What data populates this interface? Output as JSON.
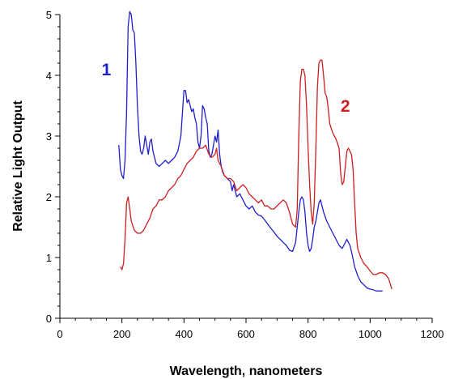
{
  "chart_data": {
    "type": "line",
    "title": "",
    "xlabel": "Wavelength, nanometers",
    "ylabel": "Relative Light Output",
    "xlim": [
      0,
      1200
    ],
    "ylim": [
      0,
      5
    ],
    "x_ticks": [
      "0",
      "200",
      "400",
      "600",
      "800",
      "1000",
      "1200"
    ],
    "y_ticks": [
      "0",
      "1",
      "2",
      "3",
      "4",
      "5"
    ],
    "grid": false,
    "legend": "none",
    "series": [
      {
        "name": "1",
        "color": "#1f1fcc",
        "points": [
          [
            190,
            2.85
          ],
          [
            195,
            2.45
          ],
          [
            200,
            2.35
          ],
          [
            205,
            2.3
          ],
          [
            210,
            2.6
          ],
          [
            215,
            3.4
          ],
          [
            220,
            4.8
          ],
          [
            225,
            5.05
          ],
          [
            230,
            5.0
          ],
          [
            235,
            4.75
          ],
          [
            240,
            4.7
          ],
          [
            245,
            4.2
          ],
          [
            250,
            3.5
          ],
          [
            255,
            3.0
          ],
          [
            260,
            2.75
          ],
          [
            265,
            2.7
          ],
          [
            270,
            2.8
          ],
          [
            275,
            3.0
          ],
          [
            280,
            2.85
          ],
          [
            285,
            2.7
          ],
          [
            290,
            2.9
          ],
          [
            295,
            2.95
          ],
          [
            300,
            2.75
          ],
          [
            310,
            2.55
          ],
          [
            320,
            2.5
          ],
          [
            330,
            2.55
          ],
          [
            340,
            2.6
          ],
          [
            350,
            2.55
          ],
          [
            360,
            2.6
          ],
          [
            370,
            2.65
          ],
          [
            380,
            2.75
          ],
          [
            390,
            3.0
          ],
          [
            400,
            3.75
          ],
          [
            405,
            3.75
          ],
          [
            410,
            3.55
          ],
          [
            415,
            3.6
          ],
          [
            420,
            3.5
          ],
          [
            425,
            3.4
          ],
          [
            430,
            3.45
          ],
          [
            435,
            3.3
          ],
          [
            440,
            3.2
          ],
          [
            445,
            2.9
          ],
          [
            450,
            2.8
          ],
          [
            455,
            3.0
          ],
          [
            460,
            3.5
          ],
          [
            465,
            3.45
          ],
          [
            470,
            3.3
          ],
          [
            475,
            3.2
          ],
          [
            480,
            2.75
          ],
          [
            485,
            2.65
          ],
          [
            490,
            2.7
          ],
          [
            495,
            2.85
          ],
          [
            500,
            3.0
          ],
          [
            505,
            2.9
          ],
          [
            510,
            3.1
          ],
          [
            515,
            2.7
          ],
          [
            520,
            2.5
          ],
          [
            525,
            2.4
          ],
          [
            530,
            2.35
          ],
          [
            540,
            2.3
          ],
          [
            550,
            2.25
          ],
          [
            555,
            2.1
          ],
          [
            560,
            2.2
          ],
          [
            570,
            2.0
          ],
          [
            580,
            2.05
          ],
          [
            590,
            1.95
          ],
          [
            600,
            1.85
          ],
          [
            610,
            1.8
          ],
          [
            620,
            1.85
          ],
          [
            630,
            1.75
          ],
          [
            640,
            1.7
          ],
          [
            650,
            1.68
          ],
          [
            660,
            1.62
          ],
          [
            670,
            1.55
          ],
          [
            680,
            1.48
          ],
          [
            690,
            1.42
          ],
          [
            700,
            1.35
          ],
          [
            710,
            1.3
          ],
          [
            720,
            1.25
          ],
          [
            730,
            1.2
          ],
          [
            740,
            1.12
          ],
          [
            750,
            1.1
          ],
          [
            760,
            1.25
          ],
          [
            770,
            1.75
          ],
          [
            775,
            1.95
          ],
          [
            780,
            2.0
          ],
          [
            785,
            1.95
          ],
          [
            790,
            1.75
          ],
          [
            795,
            1.4
          ],
          [
            800,
            1.2
          ],
          [
            805,
            1.1
          ],
          [
            810,
            1.15
          ],
          [
            815,
            1.3
          ],
          [
            820,
            1.5
          ],
          [
            825,
            1.6
          ],
          [
            830,
            1.75
          ],
          [
            835,
            1.9
          ],
          [
            840,
            1.95
          ],
          [
            845,
            1.85
          ],
          [
            850,
            1.75
          ],
          [
            860,
            1.6
          ],
          [
            870,
            1.5
          ],
          [
            880,
            1.4
          ],
          [
            890,
            1.3
          ],
          [
            900,
            1.2
          ],
          [
            910,
            1.15
          ],
          [
            915,
            1.2
          ],
          [
            920,
            1.25
          ],
          [
            925,
            1.3
          ],
          [
            930,
            1.25
          ],
          [
            935,
            1.2
          ],
          [
            940,
            1.1
          ],
          [
            950,
            0.85
          ],
          [
            960,
            0.7
          ],
          [
            970,
            0.6
          ],
          [
            980,
            0.55
          ],
          [
            990,
            0.5
          ],
          [
            1000,
            0.48
          ],
          [
            1010,
            0.47
          ],
          [
            1020,
            0.45
          ],
          [
            1030,
            0.45
          ],
          [
            1040,
            0.45
          ]
        ]
      },
      {
        "name": "2",
        "color": "#cc1f1f",
        "points": [
          [
            195,
            0.85
          ],
          [
            200,
            0.8
          ],
          [
            205,
            0.9
          ],
          [
            210,
            1.3
          ],
          [
            215,
            1.9
          ],
          [
            220,
            2.0
          ],
          [
            225,
            1.8
          ],
          [
            230,
            1.6
          ],
          [
            240,
            1.45
          ],
          [
            250,
            1.4
          ],
          [
            260,
            1.4
          ],
          [
            270,
            1.45
          ],
          [
            280,
            1.55
          ],
          [
            290,
            1.65
          ],
          [
            300,
            1.8
          ],
          [
            310,
            1.85
          ],
          [
            320,
            1.95
          ],
          [
            330,
            1.95
          ],
          [
            340,
            2.0
          ],
          [
            350,
            2.1
          ],
          [
            360,
            2.15
          ],
          [
            370,
            2.2
          ],
          [
            380,
            2.3
          ],
          [
            390,
            2.35
          ],
          [
            400,
            2.45
          ],
          [
            410,
            2.55
          ],
          [
            420,
            2.6
          ],
          [
            430,
            2.65
          ],
          [
            440,
            2.75
          ],
          [
            450,
            2.8
          ],
          [
            460,
            2.8
          ],
          [
            470,
            2.85
          ],
          [
            480,
            2.7
          ],
          [
            490,
            2.65
          ],
          [
            500,
            2.7
          ],
          [
            505,
            2.8
          ],
          [
            510,
            2.6
          ],
          [
            520,
            2.5
          ],
          [
            530,
            2.35
          ],
          [
            540,
            2.3
          ],
          [
            550,
            2.3
          ],
          [
            560,
            2.25
          ],
          [
            570,
            2.1
          ],
          [
            580,
            2.15
          ],
          [
            590,
            2.2
          ],
          [
            600,
            2.15
          ],
          [
            610,
            2.05
          ],
          [
            620,
            2.0
          ],
          [
            630,
            1.95
          ],
          [
            640,
            1.9
          ],
          [
            650,
            1.95
          ],
          [
            660,
            1.85
          ],
          [
            670,
            1.85
          ],
          [
            680,
            1.8
          ],
          [
            690,
            1.8
          ],
          [
            700,
            1.85
          ],
          [
            710,
            1.9
          ],
          [
            720,
            1.95
          ],
          [
            730,
            1.9
          ],
          [
            740,
            1.75
          ],
          [
            750,
            1.55
          ],
          [
            760,
            1.5
          ],
          [
            765,
            1.8
          ],
          [
            770,
            3.0
          ],
          [
            775,
            3.9
          ],
          [
            780,
            4.1
          ],
          [
            785,
            4.1
          ],
          [
            790,
            4.0
          ],
          [
            795,
            3.5
          ],
          [
            800,
            2.8
          ],
          [
            805,
            2.2
          ],
          [
            810,
            1.75
          ],
          [
            815,
            1.55
          ],
          [
            820,
            1.9
          ],
          [
            825,
            2.8
          ],
          [
            830,
            3.8
          ],
          [
            835,
            4.2
          ],
          [
            840,
            4.25
          ],
          [
            845,
            4.25
          ],
          [
            850,
            4.0
          ],
          [
            855,
            3.7
          ],
          [
            860,
            3.65
          ],
          [
            865,
            3.45
          ],
          [
            870,
            3.2
          ],
          [
            880,
            3.05
          ],
          [
            890,
            2.95
          ],
          [
            900,
            2.8
          ],
          [
            905,
            2.4
          ],
          [
            910,
            2.2
          ],
          [
            915,
            2.25
          ],
          [
            920,
            2.5
          ],
          [
            925,
            2.75
          ],
          [
            930,
            2.8
          ],
          [
            935,
            2.75
          ],
          [
            940,
            2.7
          ],
          [
            945,
            2.45
          ],
          [
            950,
            1.9
          ],
          [
            955,
            1.4
          ],
          [
            960,
            1.15
          ],
          [
            970,
            1.0
          ],
          [
            980,
            0.9
          ],
          [
            990,
            0.85
          ],
          [
            1000,
            0.78
          ],
          [
            1010,
            0.72
          ],
          [
            1020,
            0.72
          ],
          [
            1030,
            0.75
          ],
          [
            1040,
            0.75
          ],
          [
            1050,
            0.72
          ],
          [
            1060,
            0.65
          ],
          [
            1070,
            0.48
          ]
        ]
      }
    ]
  }
}
